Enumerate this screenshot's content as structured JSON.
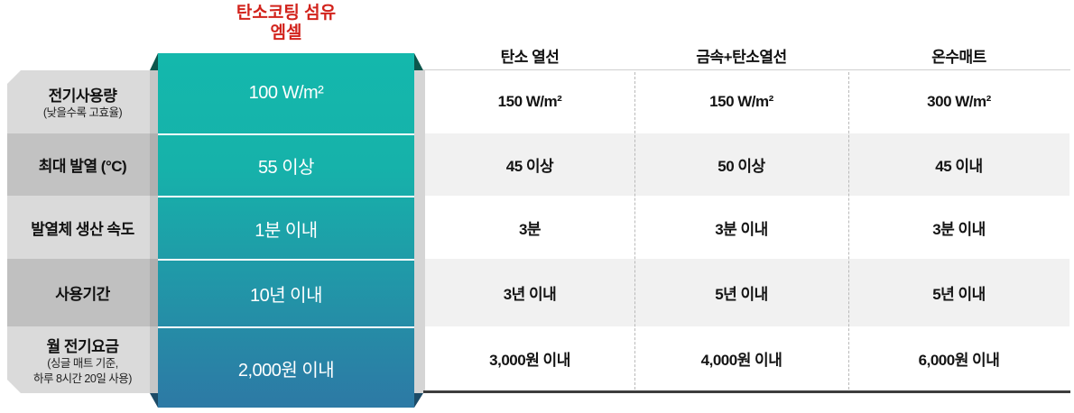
{
  "highlight": {
    "title_line1": "탄소코팅 섬유",
    "title_line2": "엠셀",
    "title_color": "#d2231c",
    "ribbon_color_top": "#14b8ac",
    "ribbon_color_bottom": "#2d79a5",
    "fold_color_top": "#0d564c",
    "fold_color_bottom": "#1d4b67",
    "values": [
      "100 W/m²",
      "55 이상",
      "1분 이내",
      "10년 이내",
      "2,000원 이내"
    ]
  },
  "rows": [
    {
      "label": "전기사용량",
      "sublabel": "(낮을수록 고효율)",
      "sublabel2": ""
    },
    {
      "label": "최대 발열 (°C)",
      "sublabel": "",
      "sublabel2": ""
    },
    {
      "label": "발열체 생산 속도",
      "sublabel": "",
      "sublabel2": ""
    },
    {
      "label": "사용기간",
      "sublabel": "",
      "sublabel2": ""
    },
    {
      "label": "월 전기요금",
      "sublabel": "(싱글 매트 기준,",
      "sublabel2": "하루 8시간 20일 사용)"
    }
  ],
  "competitors": [
    {
      "name": "탄소 열선",
      "values": [
        "150 W/m²",
        "45 이상",
        "3분",
        "3년 이내",
        "3,000원 이내"
      ]
    },
    {
      "name": "금속+탄소열선",
      "values": [
        "150 W/m²",
        "50 이상",
        "3분 이내",
        "5년 이내",
        "4,000원 이내"
      ]
    },
    {
      "name": "온수매트",
      "values": [
        "300 W/m²",
        "45 이내",
        "3분 이내",
        "5년 이내",
        "6,000원 이내"
      ]
    }
  ],
  "chart_data": {
    "type": "table",
    "columns": [
      "탄소코팅 섬유 엠셀",
      "탄소 열선",
      "금속+탄소열선",
      "온수매트"
    ],
    "row_headers": [
      "전기사용량 (낮을수록 고효율)",
      "최대 발열 (°C)",
      "발열체 생산 속도",
      "사용기간",
      "월 전기요금 (싱글 매트 기준, 하루 8시간 20일 사용)"
    ],
    "rows": [
      [
        "100 W/m²",
        "150 W/m²",
        "150 W/m²",
        "300 W/m²"
      ],
      [
        "55 이상",
        "45 이상",
        "50 이상",
        "45 이내"
      ],
      [
        "1분 이내",
        "3분",
        "3분 이내",
        "3분 이내"
      ],
      [
        "10년 이내",
        "3년 이내",
        "5년 이내",
        "5년 이내"
      ],
      [
        "2,000원 이내",
        "3,000원 이내",
        "4,000원 이내",
        "6,000원 이내"
      ]
    ],
    "layout_hints": {
      "highlight_column": 0,
      "row_band_shading": [
        1,
        3
      ],
      "grid": "dashed-column-dividers"
    }
  }
}
